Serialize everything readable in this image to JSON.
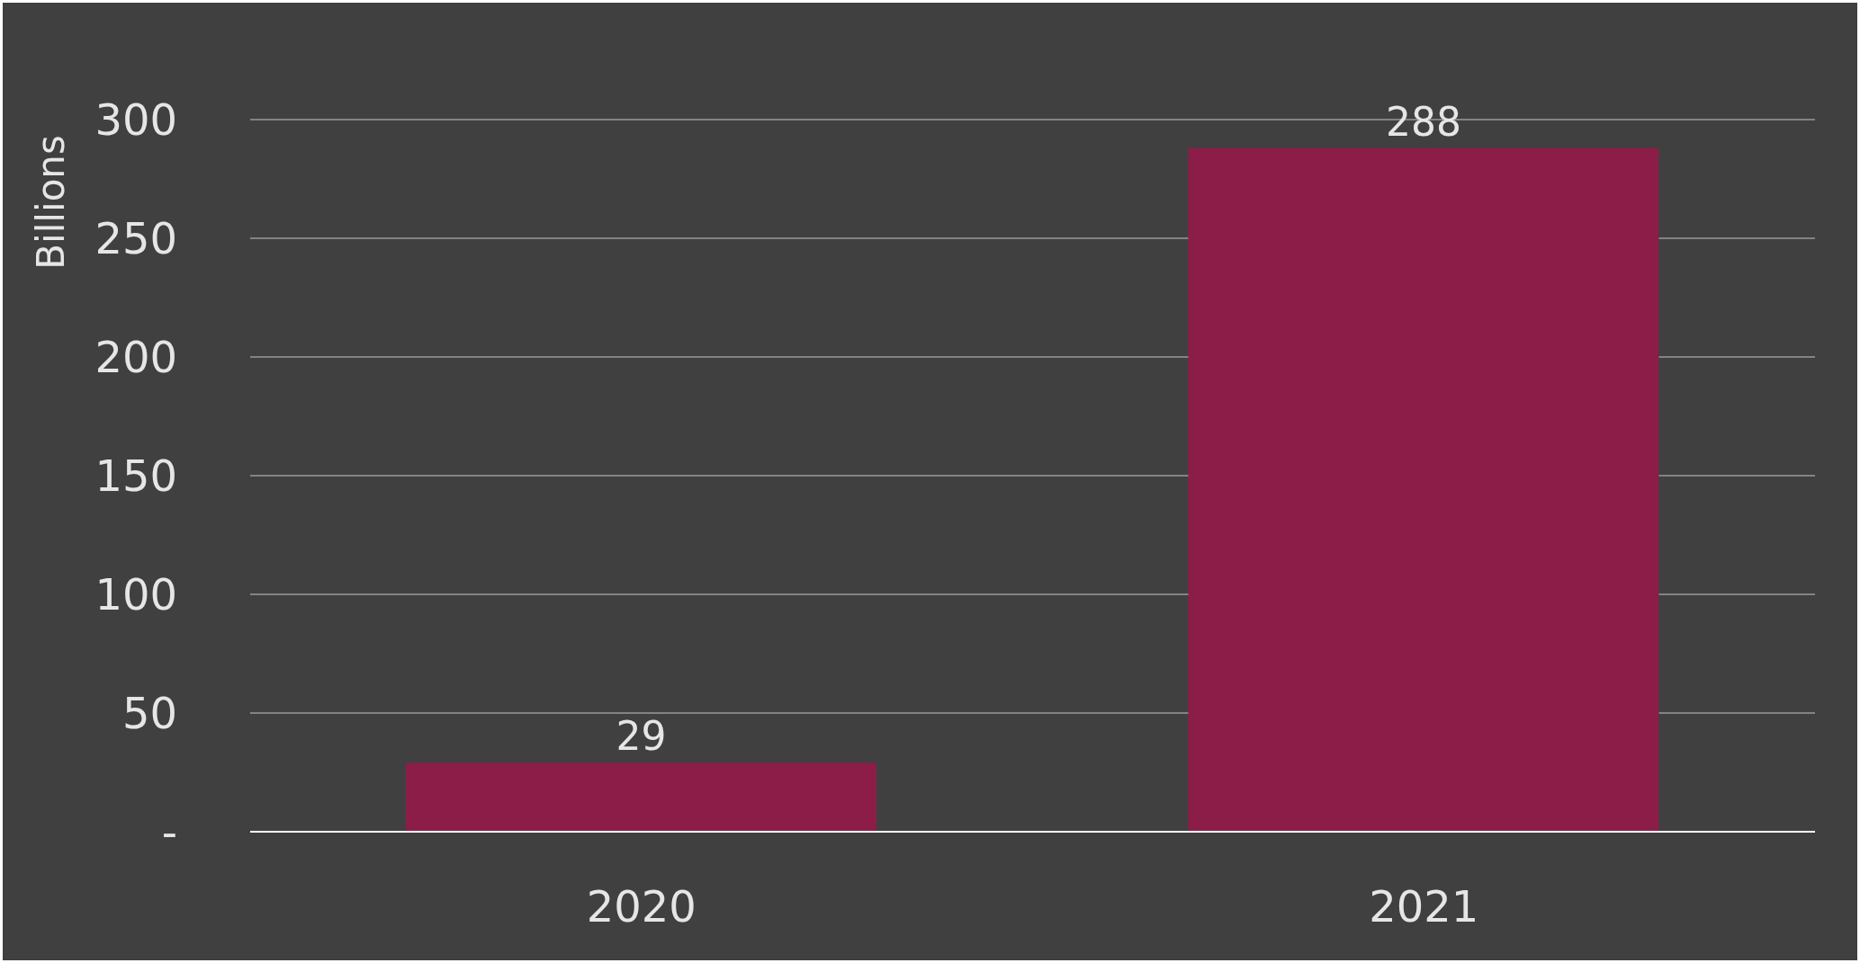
{
  "chart_data": {
    "type": "bar",
    "ylabel": "Billions",
    "categories": [
      "2020",
      "2021"
    ],
    "values": [
      29,
      288
    ],
    "color": "#8c1d48",
    "data_labels": true,
    "ylim": [
      0,
      300
    ],
    "yticks": [
      {
        "value": 0,
        "label": "-"
      },
      50,
      100,
      150,
      200,
      250,
      300
    ],
    "grid": "y"
  }
}
